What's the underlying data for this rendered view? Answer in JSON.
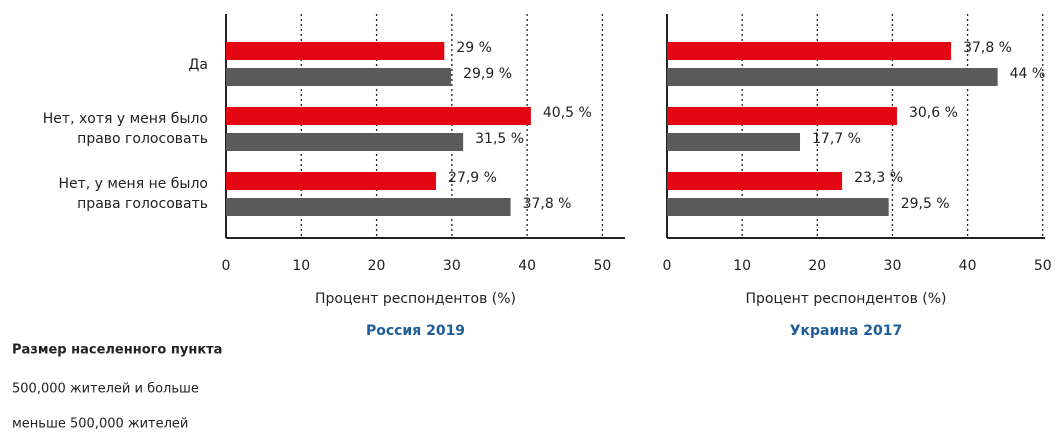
{
  "chart_data": [
    {
      "type": "hbar",
      "title": "Россия 2019",
      "xlabel": "Процент респондентов (%)",
      "categories": [
        "Да",
        "Нет, хотя у меня было право голосовать",
        "Нет, у меня не было права голосовать"
      ],
      "series": [
        {
          "name": "500,000 жителей и больше",
          "color": "#e30613",
          "values": [
            29,
            40.5,
            27.9
          ],
          "value_labels": [
            "29 %",
            "40,5 %",
            "27,9 %"
          ]
        },
        {
          "name": "меньше 500,000 жителей",
          "color": "#5b5b5b",
          "values": [
            29.9,
            31.5,
            37.8
          ],
          "value_labels": [
            "29,9 %",
            "31,5 %",
            "37,8 %"
          ]
        }
      ],
      "xlim": [
        0,
        53
      ],
      "xticks": [
        0,
        10,
        20,
        30,
        40,
        50
      ],
      "grid": true
    },
    {
      "type": "hbar",
      "title": "Украина  2017",
      "xlabel": "Процент респондентов (%)",
      "categories": [
        null,
        null,
        null
      ],
      "series": [
        {
          "color": "#e30613",
          "values": [
            37.8,
            30.6,
            23.3
          ],
          "value_labels": [
            "37,8 %",
            "30,6 %",
            "23,3 %"
          ]
        },
        {
          "color": "#5b5b5b",
          "values": [
            44,
            17.7,
            29.5
          ],
          "value_labels": [
            "44 %",
            "17,7 %",
            "29,5 %"
          ]
        }
      ],
      "xlim": [
        0,
        50.3
      ],
      "xticks": [
        0,
        10,
        20,
        30,
        40,
        50
      ],
      "grid": true
    }
  ],
  "legend_title": "Размер населенного пункта"
}
